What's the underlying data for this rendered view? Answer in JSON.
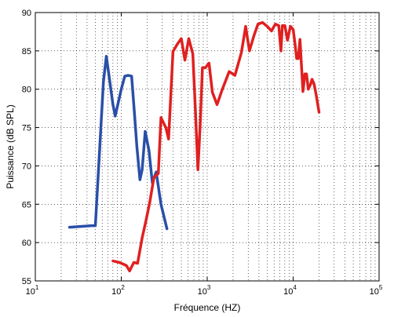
{
  "chart_data": {
    "type": "line",
    "title": "",
    "xlabel": "Fréquence (HZ)",
    "ylabel": "Puissance (dB SPL)",
    "xscale": "log",
    "xlim": [
      10,
      100000
    ],
    "ylim": [
      55,
      90
    ],
    "grid": "dotted, major and minor",
    "x_ticks": [
      {
        "base": "10",
        "exp": "1",
        "value": 10
      },
      {
        "base": "10",
        "exp": "2",
        "value": 100
      },
      {
        "base": "10",
        "exp": "3",
        "value": 1000
      },
      {
        "base": "10",
        "exp": "4",
        "value": 10000
      },
      {
        "base": "10",
        "exp": "5",
        "value": 100000
      }
    ],
    "y_ticks": [
      "55",
      "60",
      "65",
      "70",
      "75",
      "80",
      "85",
      "90"
    ],
    "series": [
      {
        "color": "#2a4fa8",
        "x": [
          25,
          45,
          50,
          62,
          67,
          80,
          85,
          100,
          110,
          120,
          132,
          142,
          152,
          165,
          175,
          190,
          210,
          230,
          255,
          290,
          340
        ],
        "y": [
          62.0,
          62.2,
          62.2,
          81.0,
          84.3,
          78.0,
          76.5,
          80.0,
          81.7,
          81.8,
          81.7,
          77.0,
          72.5,
          68.2,
          69.5,
          74.5,
          72.0,
          67.8,
          69.2,
          65.0,
          61.8
        ]
      },
      {
        "color": "#e02020",
        "x": [
          80,
          95,
          105,
          115,
          125,
          140,
          155,
          175,
          195,
          215,
          240,
          270,
          290,
          330,
          355,
          400,
          450,
          500,
          550,
          610,
          680,
          730,
          780,
          830,
          880,
          950,
          1050,
          1150,
          1300,
          1500,
          1800,
          2100,
          2500,
          2800,
          3100,
          3500,
          3900,
          4400,
          5000,
          5600,
          6200,
          6800,
          7200,
          7500,
          8000,
          8600,
          9300,
          10000,
          10500,
          11000,
          11500,
          12000,
          13000,
          13700,
          14300,
          15000,
          16000,
          16600,
          17500,
          18500,
          20000
        ],
        "y": [
          57.6,
          57.4,
          57.2,
          57.0,
          56.3,
          57.4,
          57.3,
          60.6,
          63.0,
          65.3,
          68.5,
          69.0,
          76.3,
          75.0,
          73.5,
          84.9,
          85.9,
          86.6,
          83.8,
          86.6,
          84.6,
          77.2,
          69.5,
          75.5,
          82.8,
          82.8,
          83.4,
          79.6,
          78.0,
          80.0,
          82.3,
          81.8,
          84.8,
          88.2,
          85.0,
          87.0,
          88.5,
          88.7,
          88.2,
          87.6,
          88.5,
          88.3,
          85.0,
          88.3,
          88.3,
          86.4,
          88.2,
          87.8,
          86.0,
          84.0,
          84.0,
          86.5,
          79.7,
          82.0,
          82.0,
          80.0,
          80.7,
          81.3,
          80.7,
          79.3,
          77.0
        ]
      }
    ]
  }
}
